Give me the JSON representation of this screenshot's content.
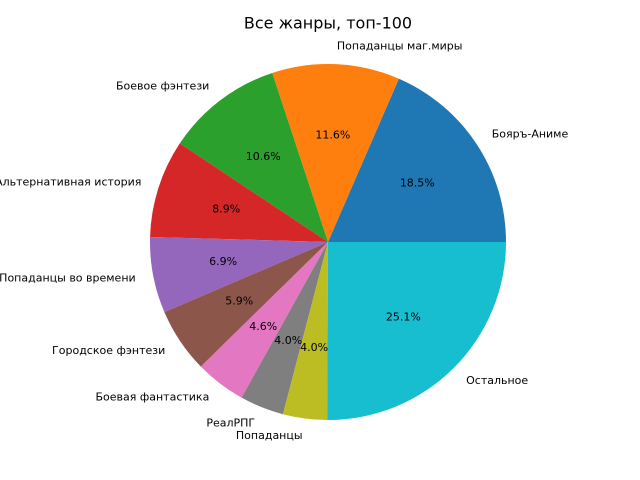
{
  "chart_data": {
    "type": "pie",
    "title": "Все жанры, топ-100",
    "categories": [
      "Бояръ-Аниме",
      "Попаданцы маг.миры",
      "Боевое фэнтези",
      "Альтернативная история",
      "Попаданцы во времени",
      "Городское фэнтези",
      "Боевая фантастика",
      "РеалРПГ",
      "Попаданцы",
      "Остальное"
    ],
    "values": [
      18.5,
      11.6,
      10.6,
      8.9,
      6.9,
      5.9,
      4.6,
      4.0,
      4.0,
      25.1
    ],
    "value_labels": [
      "18.5%",
      "11.6%",
      "10.6%",
      "8.9%",
      "6.9%",
      "5.9%",
      "4.6%",
      "4.0%",
      "4.0%",
      "25.1%"
    ],
    "colors": [
      "#1f77b4",
      "#ff7f0e",
      "#2ca02c",
      "#d62728",
      "#9467bd",
      "#8c564b",
      "#e377c2",
      "#7f7f7f",
      "#bcbd22",
      "#17becf"
    ]
  }
}
